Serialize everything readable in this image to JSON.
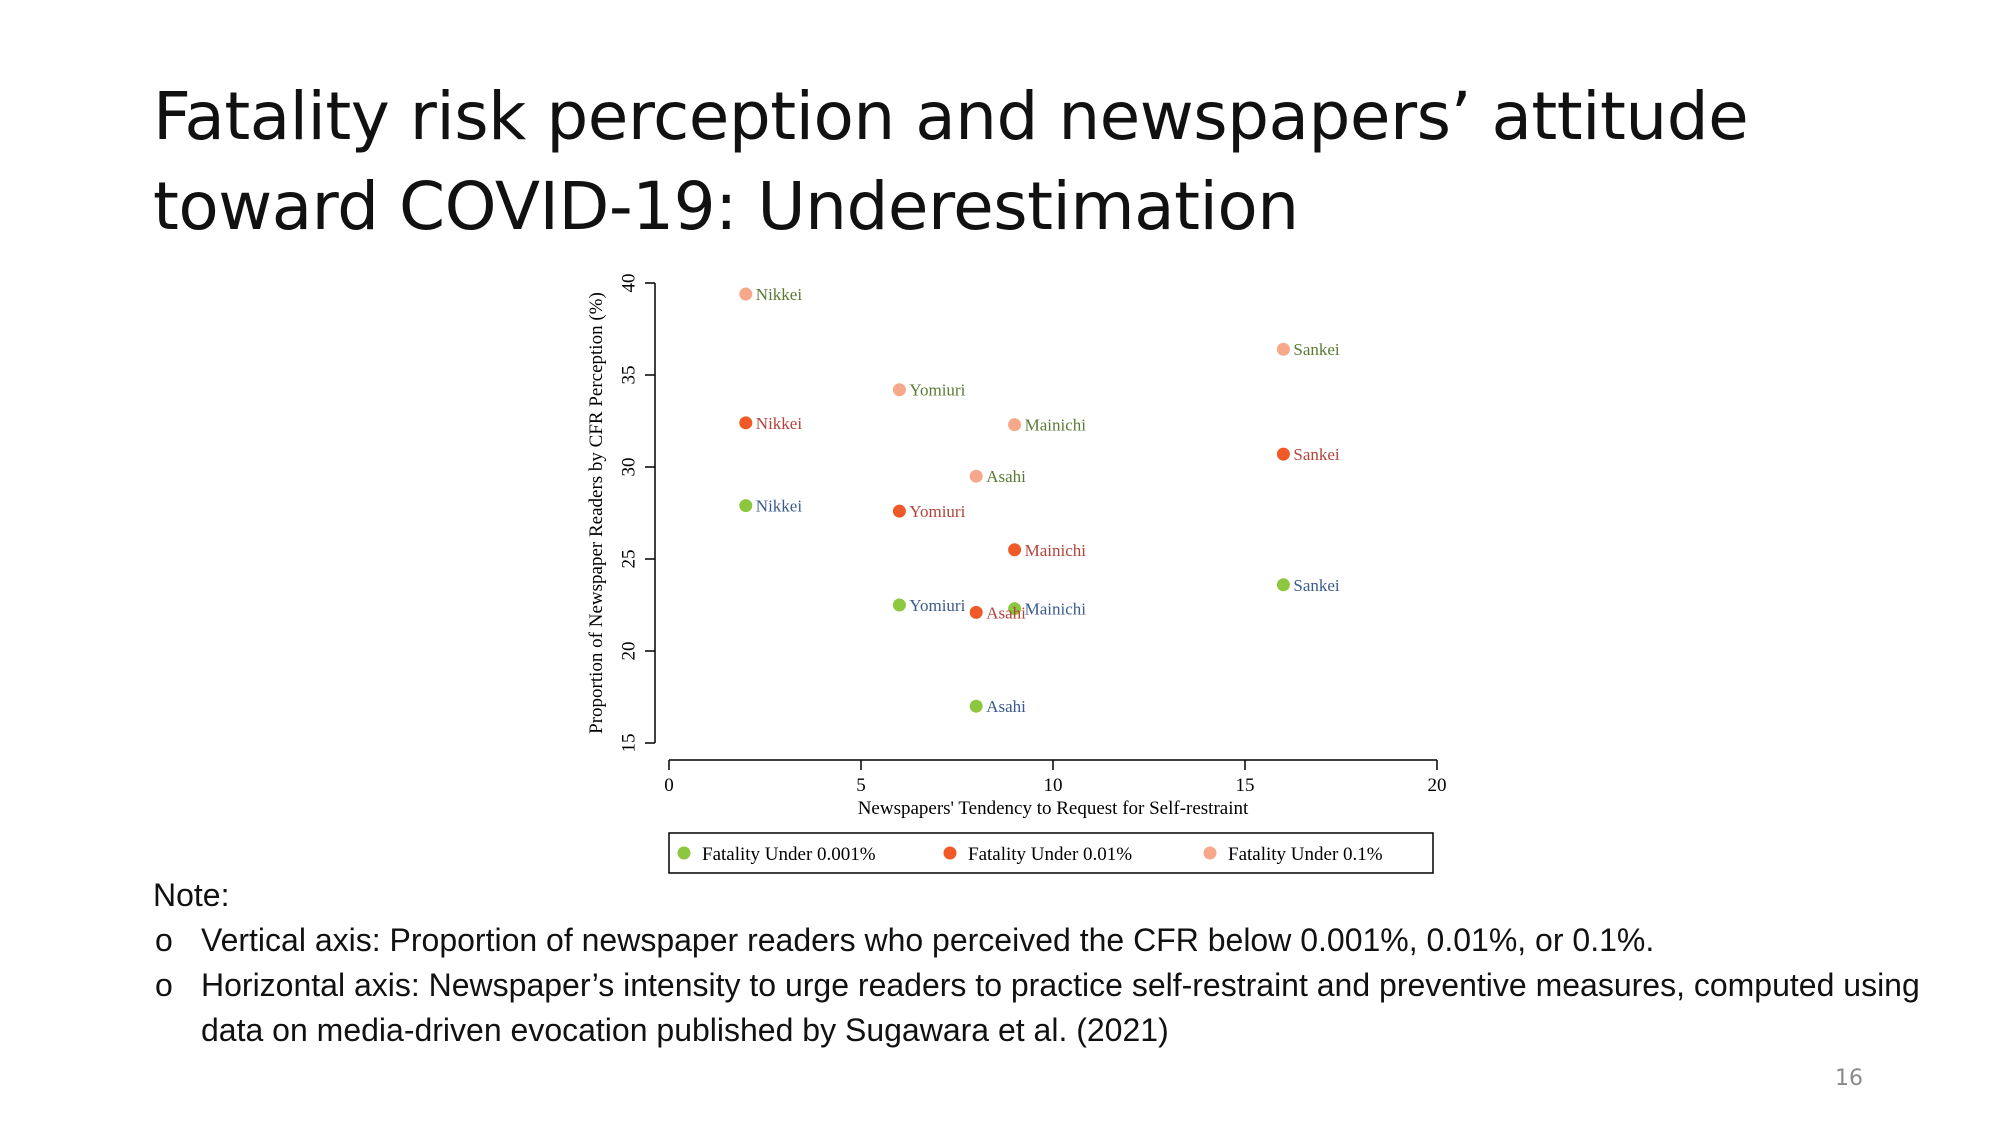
{
  "slide": {
    "title_line1": "Fatality risk perception and newspapers’ attitude",
    "title_line2": "toward COVID-19: Underestimation",
    "page_number": "16"
  },
  "notes": {
    "heading": "Note:",
    "bullet_symbol": "o",
    "items": [
      "Vertical axis: Proportion of newspaper readers who perceived the CFR below 0.001%, 0.01%, or 0.1%.",
      "Horizontal axis: Newspaper’s intensity to urge readers to practice self-restraint and preventive measures, computed using data on media-driven evocation published by Sugawara et al. (2021)"
    ]
  },
  "chart_data": {
    "type": "scatter",
    "title": "",
    "xlabel": "Newspapers' Tendency to Request for Self-restraint",
    "ylabel": "Proportion of Newspaper Readers by CFR Perception (%)",
    "xlim": [
      0,
      20
    ],
    "ylim": [
      15,
      40
    ],
    "xticks": [
      "0",
      "5",
      "10",
      "15",
      "20"
    ],
    "yticks": [
      "15",
      "20",
      "25",
      "30",
      "35",
      "40"
    ],
    "grid": false,
    "legend_position": "bottom",
    "series": [
      {
        "name": "Fatality Under 0.001%",
        "color": "#8dc63f",
        "label_color": "#3a5a8c",
        "points": [
          {
            "label": "Nikkei",
            "x": 2,
            "y": 27.9
          },
          {
            "label": "Yomiuri",
            "x": 6,
            "y": 22.5
          },
          {
            "label": "Asahi",
            "x": 8,
            "y": 17.0
          },
          {
            "label": "Mainichi",
            "x": 9,
            "y": 22.3
          },
          {
            "label": "Sankei",
            "x": 16,
            "y": 23.6
          }
        ]
      },
      {
        "name": "Fatality Under 0.01%",
        "color": "#f05a28",
        "label_color": "#b0443a",
        "points": [
          {
            "label": "Nikkei",
            "x": 2,
            "y": 32.4
          },
          {
            "label": "Yomiuri",
            "x": 6,
            "y": 27.6
          },
          {
            "label": "Asahi",
            "x": 8,
            "y": 22.1
          },
          {
            "label": "Mainichi",
            "x": 9,
            "y": 25.5
          },
          {
            "label": "Sankei",
            "x": 16,
            "y": 30.7
          }
        ]
      },
      {
        "name": "Fatality Under 0.1%",
        "color": "#f7a88a",
        "label_color": "#5a7a34",
        "points": [
          {
            "label": "Nikkei",
            "x": 2,
            "y": 39.4
          },
          {
            "label": "Yomiuri",
            "x": 6,
            "y": 34.2
          },
          {
            "label": "Asahi",
            "x": 8,
            "y": 29.5
          },
          {
            "label": "Mainichi",
            "x": 9,
            "y": 32.3
          },
          {
            "label": "Sankei",
            "x": 16,
            "y": 36.4
          }
        ]
      }
    ]
  }
}
